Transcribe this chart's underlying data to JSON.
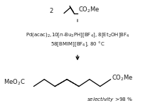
{
  "background_color": "#ffffff",
  "figsize": [
    2.18,
    1.52
  ],
  "dpi": 100,
  "reactant_num": "2",
  "conditions_line1": "Pd(acac)$_2$,10[$n$-Bu$_3$PH][BF$_4$], 8[Et$_2$OH]BF$_4$",
  "conditions_line2": "58[BMIM][BF$_4$], 80 °C",
  "selectivity": "$\\it{selectivity}$ >98 %",
  "text_color": "#1a1a1a",
  "arrow_color": "#444444",
  "fs_conditions": 5.0,
  "fs_labels": 6.0,
  "fs_selectivity": 5.2
}
